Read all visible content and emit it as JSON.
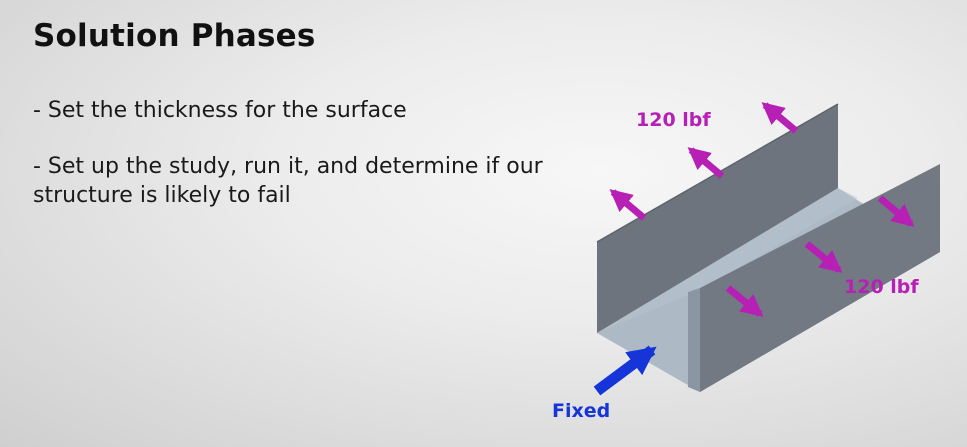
{
  "slide": {
    "title": "Solution Phases",
    "bullets": [
      "- Set the thickness for the surface",
      "- Set up the study, run it, and determine if our structure is likely to fail"
    ]
  },
  "diagram": {
    "load_label_top": "120 lbf",
    "load_label_right": "120 lbf",
    "fixed_label": "Fixed",
    "colors": {
      "load_arrow": "#b620b4",
      "fixed_arrow": "#1535d8",
      "wall_face": "#6f757e",
      "base_face": "#aeb9c6"
    }
  }
}
